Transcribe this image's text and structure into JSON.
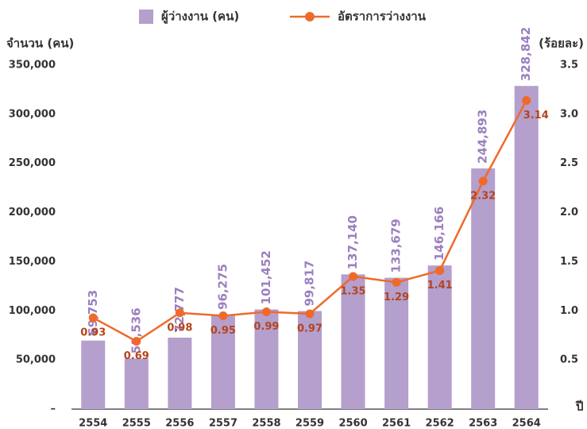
{
  "chart_data": {
    "type": "bar_line",
    "y_label": "จำนวน (คน)",
    "y2_label": "(ร้อยละ)",
    "x_label": "ปี",
    "categories": [
      "2554",
      "2555",
      "2556",
      "2557",
      "2558",
      "2559",
      "2560",
      "2561",
      "2562",
      "2563",
      "2564"
    ],
    "series": [
      {
        "name": "ผู้ว่างงาน (คน)",
        "color": "#b49fcd",
        "type": "bar",
        "values": [
          69753,
          51536,
          72777,
          96275,
          101452,
          99817,
          137140,
          133679,
          146166,
          244893,
          328842
        ],
        "value_labels": [
          "69,753",
          "51,536",
          "72,777",
          "96,275",
          "101,452",
          "99,817",
          "137,140",
          "133,679",
          "146,166",
          "244,893",
          "328,842"
        ]
      },
      {
        "name": "อัตราการว่างงาน",
        "color": "#ef6a2a",
        "type": "line",
        "axis": "y2",
        "values": [
          0.93,
          0.69,
          0.98,
          0.95,
          0.99,
          0.97,
          1.35,
          1.29,
          1.41,
          2.32,
          3.14
        ]
      }
    ],
    "ylim": [
      0,
      350000
    ],
    "yticks": [
      {
        "value": 0,
        "label": "–"
      },
      {
        "value": 50000,
        "label": "50,000"
      },
      {
        "value": 100000,
        "label": "100,000"
      },
      {
        "value": 150000,
        "label": "150,000"
      },
      {
        "value": 200000,
        "label": "200,000"
      },
      {
        "value": 250000,
        "label": "250,000"
      },
      {
        "value": 300000,
        "label": "300,000"
      },
      {
        "value": 350000,
        "label": "350,000"
      }
    ],
    "y2lim": [
      0,
      3.5
    ],
    "y2ticks": [
      0.5,
      {
        "value": 1,
        "label": "1.0"
      },
      1.5,
      {
        "value": 2,
        "label": "2.0"
      },
      2.5,
      {
        "value": 3,
        "label": "3.0"
      },
      3.5
    ]
  }
}
